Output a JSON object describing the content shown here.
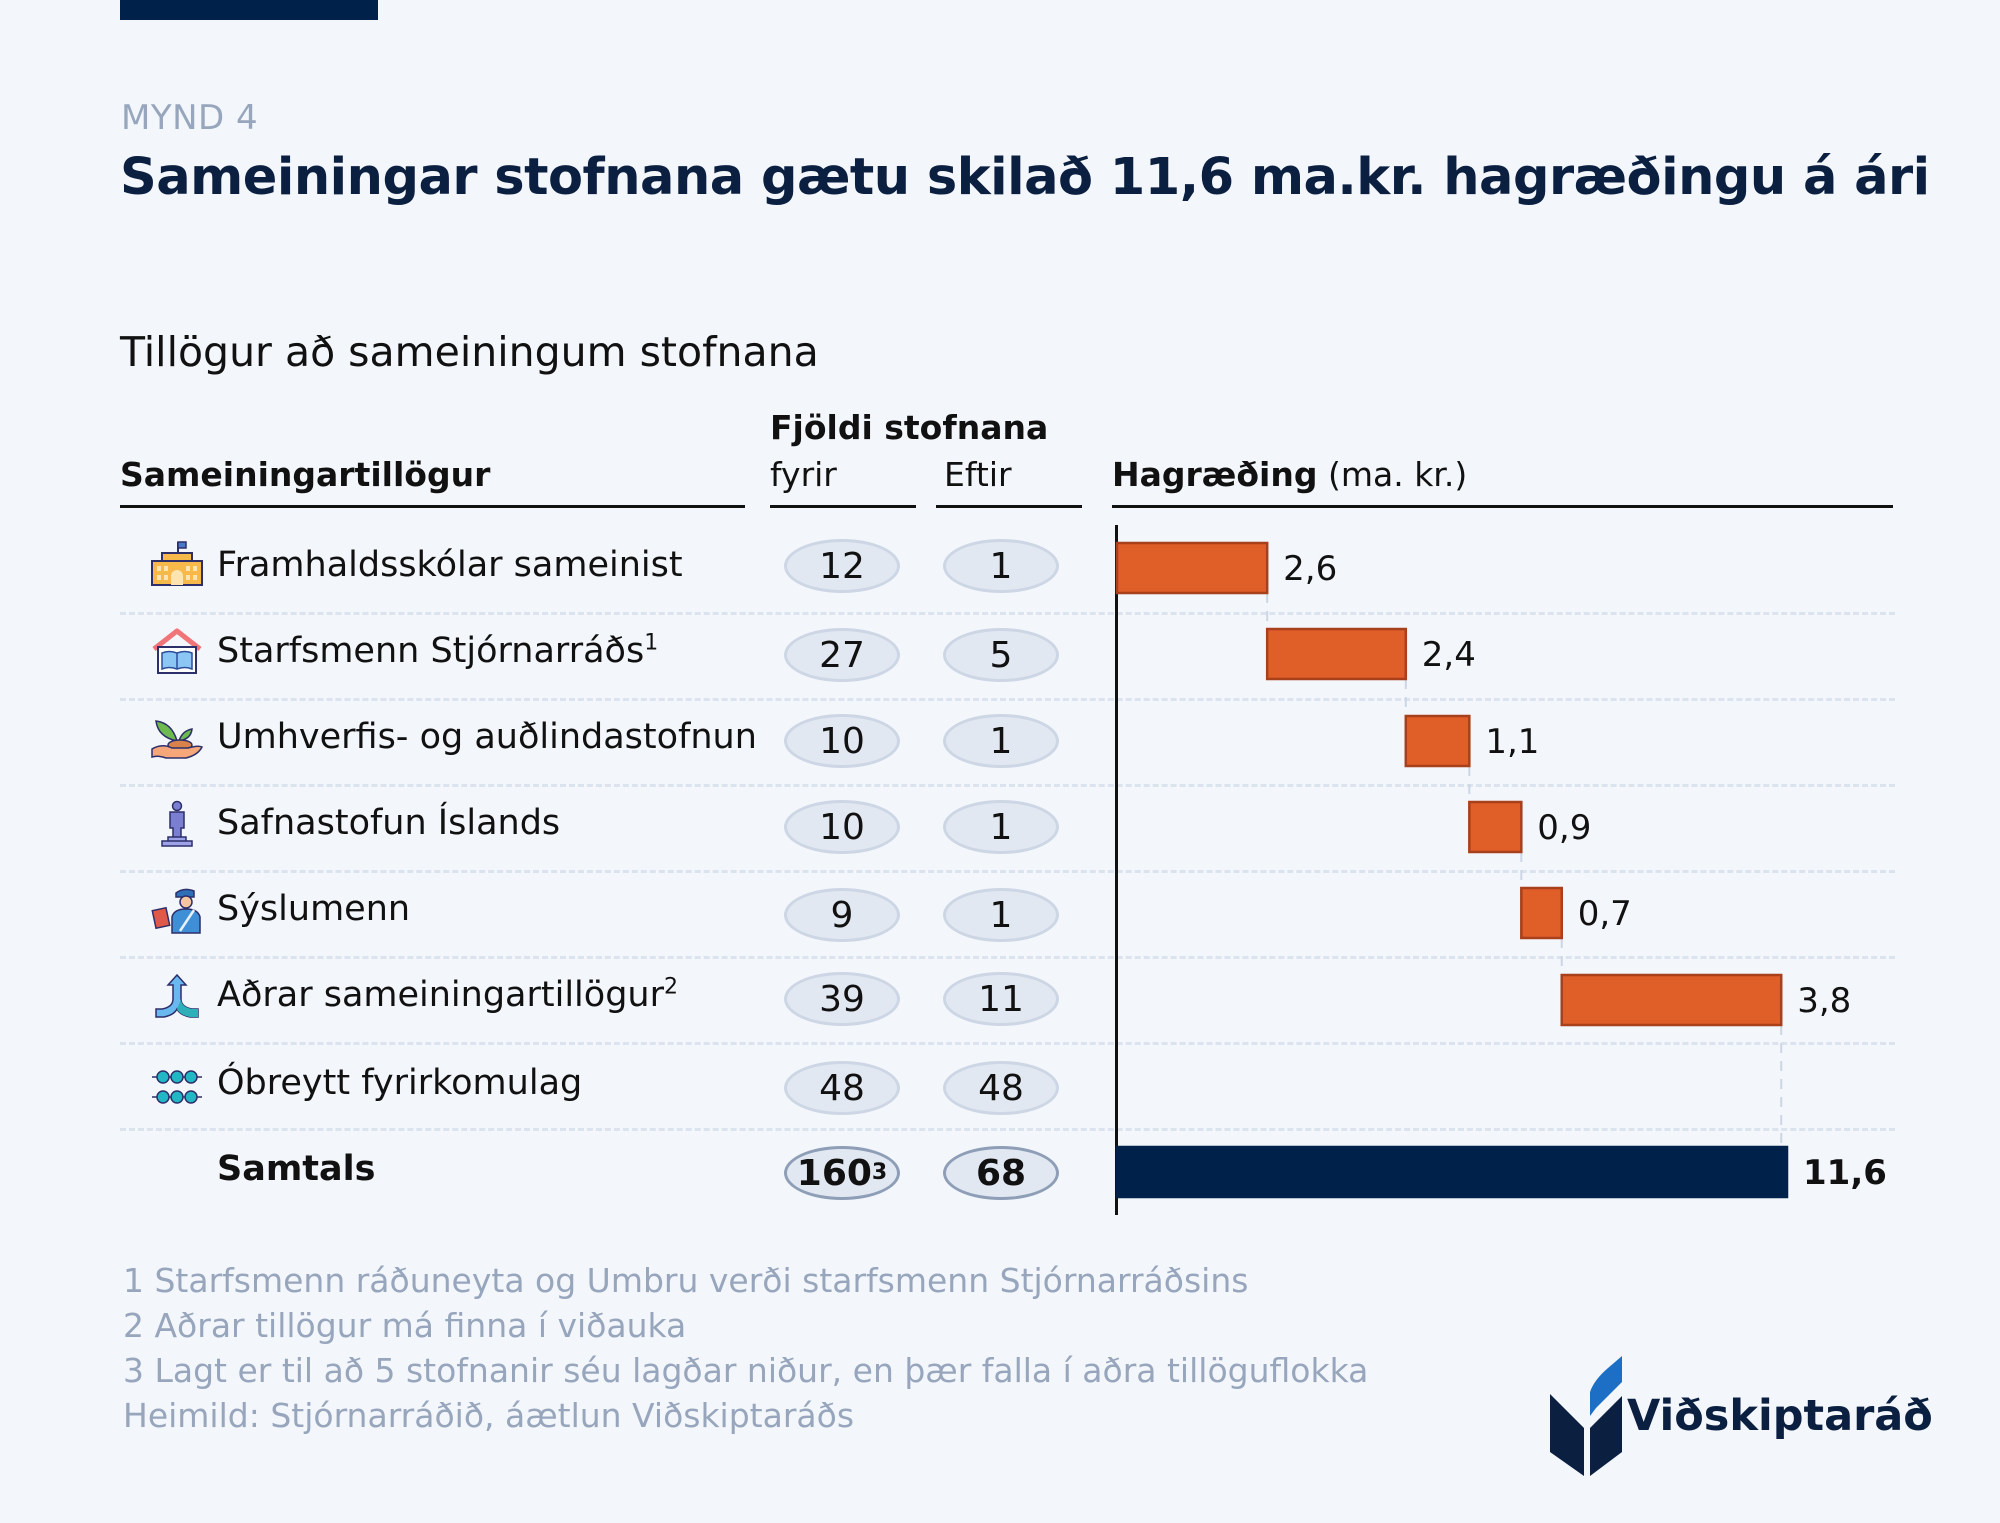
{
  "header": {
    "figure_label": "MYND 4",
    "title": "Sameiningar stofnana gætu skilað 11,6 ma.kr. hagræðingu á ári",
    "subtitle": "Tillögur að sameiningum stofnana"
  },
  "columns": {
    "proposals": "Sameiningartillögur",
    "count_group": "Fjöldi stofnana",
    "before": "fyrir",
    "after": "Eftir",
    "savings_bold": "Hagræðing",
    "savings_unit": "(ma. kr.)"
  },
  "rows": [
    {
      "icon": "school-building-icon",
      "label": "Framhaldsskólar sameinist",
      "sup": "",
      "before": "12",
      "before_sup": "",
      "after": "1",
      "savings": "2,6"
    },
    {
      "icon": "house-book-icon",
      "label": "Starfsmenn Stjórnarráðs",
      "sup": "1",
      "before": "27",
      "before_sup": "",
      "after": "5",
      "savings": "2,4"
    },
    {
      "icon": "hand-plant-icon",
      "label": "Umhverfis- og auðlindastofnun",
      "sup": "",
      "before": "10",
      "before_sup": "",
      "after": "1",
      "savings": "1,1"
    },
    {
      "icon": "statue-icon",
      "label": "Safnastofun Íslands",
      "sup": "",
      "before": "10",
      "before_sup": "",
      "after": "1",
      "savings": "0,9"
    },
    {
      "icon": "officer-icon",
      "label": "Sýslumenn",
      "sup": "",
      "before": "9",
      "before_sup": "",
      "after": "1",
      "savings": "0,7"
    },
    {
      "icon": "merge-arrow-icon",
      "label": "Aðrar sameiningartillögur",
      "sup": "2",
      "before": "39",
      "before_sup": "",
      "after": "11",
      "savings": "3,8"
    },
    {
      "icon": "dots-network-icon",
      "label": "Óbreytt fyrirkomulag",
      "sup": "",
      "before": "48",
      "before_sup": "",
      "after": "48",
      "savings": ""
    }
  ],
  "total": {
    "label": "Samtals",
    "before": "160",
    "before_sup": "3",
    "after": "68",
    "savings": "11,6"
  },
  "footnotes": [
    "1 Starfsmenn ráðuneyta og Umbru verði starfsmenn Stjórnarráðsins",
    "2 Aðrar tillögur má finna í viðauka",
    "3 Lagt er til að 5 stofnanir séu lagðar niður, en þær falla í aðra tillöguflokka",
    "Heimild: Stjórnarráðið, áætlun Viðskiptaráðs"
  ],
  "logo": {
    "text": "Viðskiptaráð"
  },
  "colors": {
    "bar": "#e05e28",
    "bar_border": "#a8401c",
    "total_bar": "#00224a",
    "title": "#0b1f40",
    "muted": "#97a6bc"
  },
  "chart_data": {
    "type": "bar",
    "subtype": "waterfall-horizontal",
    "title": "Hagræðing (ma. kr.)",
    "categories": [
      "Framhaldsskólar sameinist",
      "Starfsmenn Stjórnarráðs",
      "Umhverfis- og auðlindastofnun",
      "Safnastofun Íslands",
      "Sýslumenn",
      "Aðrar sameiningartillögur",
      "Óbreytt fyrirkomulag",
      "Samtals"
    ],
    "values": [
      2.6,
      2.4,
      1.1,
      0.9,
      0.7,
      3.8,
      null,
      11.6
    ],
    "value_labels": [
      "2,6",
      "2,4",
      "1,1",
      "0,9",
      "0,7",
      "3,8",
      "",
      "11,6"
    ],
    "total_index": 7,
    "xlim": [
      0,
      11.6
    ],
    "grid": false,
    "legend": "none"
  }
}
